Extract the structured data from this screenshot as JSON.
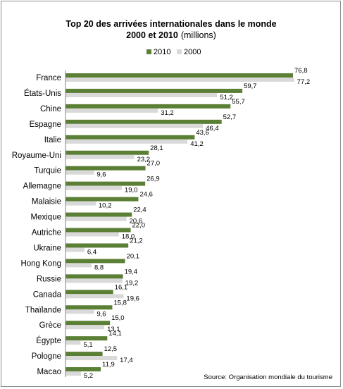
{
  "chart_data": {
    "type": "bar",
    "orientation": "horizontal",
    "title_line1": "Top 20 des arrivées internationales dans le monde",
    "title_line2_bold": "2000  et 2010",
    "title_line2_unit": "(millions)",
    "legend_position": "top",
    "series": [
      {
        "name": "2010",
        "color": "#5a7f35",
        "values": [
          76.8,
          59.7,
          55.7,
          52.7,
          43.6,
          28.1,
          27.0,
          26.9,
          24.6,
          22.4,
          22.0,
          21.2,
          20.1,
          19.4,
          16.1,
          15.8,
          15.0,
          14.1,
          12.5,
          11.9
        ],
        "labels": [
          "76,8",
          "59,7",
          "55,7",
          "52,7",
          "43,6",
          "28,1",
          "27,0",
          "26,9",
          "24,6",
          "22,4",
          "22,0",
          "21,2",
          "20,1",
          "19,4",
          "16,1",
          "15,8",
          "15,0",
          "14,1",
          "12,5",
          "11,9"
        ]
      },
      {
        "name": "2000",
        "color": "#d9d9d9",
        "values": [
          77.2,
          51.2,
          31.2,
          46.4,
          41.2,
          23.2,
          9.6,
          19.0,
          10.2,
          20.6,
          18.0,
          6.4,
          8.8,
          19.2,
          19.6,
          9.6,
          13.1,
          5.1,
          17.4,
          5.2
        ],
        "labels": [
          "77,2",
          "51,2",
          "31,2",
          "46,4",
          "41,2",
          "23,2",
          "9,6",
          "19,0",
          "10,2",
          "20,6",
          "18,0",
          "6,4",
          "8,8",
          "19,2",
          "19,6",
          "9,6",
          "13,1",
          "5,1",
          "17,4",
          "5,2"
        ]
      }
    ],
    "categories": [
      "France",
      "États-Unis",
      "Chine",
      "Espagne",
      "Italie",
      "Royaume-Uni",
      "Turquie",
      "Allemagne",
      "Malaisie",
      "Mexique",
      "Autriche",
      "Ukraine",
      "Hong Kong",
      "Russie",
      "Canada",
      "Thaïlande",
      "Grèce",
      "Égypte",
      "Pologne",
      "Macao"
    ],
    "xlim": [
      0,
      80
    ],
    "grid": false,
    "source": "Source: Organisation mondiale  du tourisme"
  }
}
